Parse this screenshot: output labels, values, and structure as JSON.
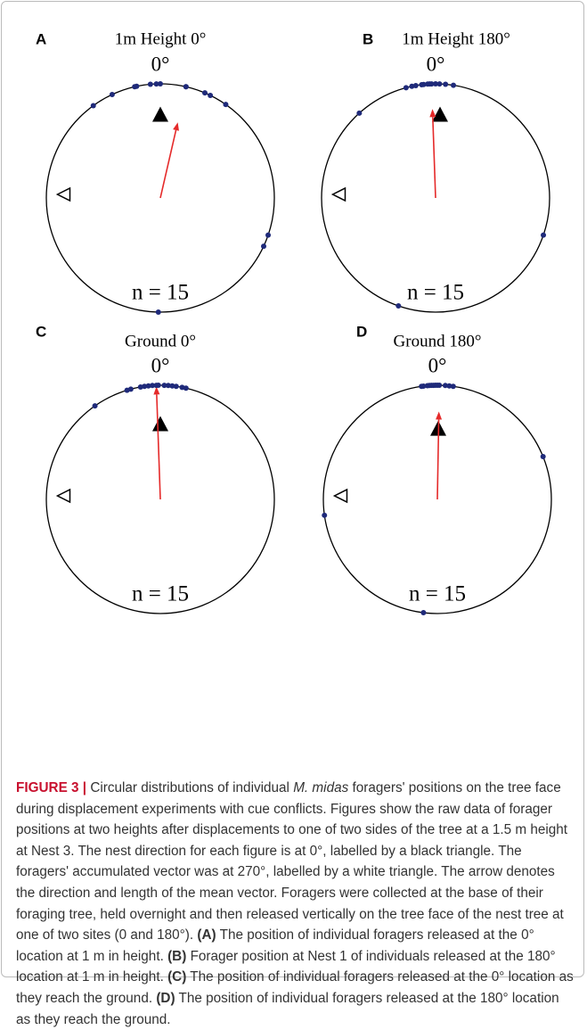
{
  "chart_data": [
    {
      "type": "circular",
      "panel": "A",
      "title": "1m Height 0°",
      "zero_label": "0°",
      "n_label": "n = 15",
      "points": [
        324,
        335,
        347,
        348,
        355,
        358,
        0,
        13,
        13,
        23,
        26,
        35,
        109,
        115,
        181
      ],
      "point_color": "#1f2a7a",
      "mean_vector": {
        "angle": 13,
        "length": 0.68
      },
      "arrow_color": "#e52a2a"
    },
    {
      "type": "circular",
      "panel": "B",
      "title": "1m Height 180°",
      "zero_label": "0°",
      "n_label": "n = 15",
      "points": [
        318,
        345,
        348,
        350,
        353,
        354,
        356,
        357,
        358,
        0,
        2,
        5,
        9,
        109,
        199
      ],
      "point_color": "#1f2a7a",
      "mean_vector": {
        "angle": 358,
        "length": 0.78
      },
      "arrow_color": "#e52a2a"
    },
    {
      "type": "circular",
      "panel": "C",
      "title": "Ground 0°",
      "zero_label": "0°",
      "n_label": "n = 15",
      "points": [
        325,
        343,
        345,
        350,
        352,
        354,
        356,
        358,
        359,
        2,
        4,
        6,
        8,
        11,
        13
      ],
      "point_color": "#1f2a7a",
      "mean_vector": {
        "angle": 358,
        "length": 0.99
      },
      "arrow_color": "#e52a2a"
    },
    {
      "type": "circular",
      "panel": "D",
      "title": "Ground 180°",
      "zero_label": "0°",
      "n_label": "n = 15",
      "points": [
        262,
        352,
        353,
        355,
        356,
        357,
        358,
        359,
        0,
        1,
        4,
        6,
        8,
        68,
        187
      ],
      "point_color": "#1f2a7a",
      "mean_vector": {
        "angle": 1,
        "length": 0.77
      },
      "arrow_color": "#e52a2a"
    }
  ],
  "caption": [
    "FIGURE 3 |",
    " Circular distributions of individual ",
    "M. midas",
    " foragers' positions on the tree face during displacement experiments with cue conflicts. Figures show the raw data of forager positions at two heights after displacements to one of two sides of the tree at a 1.5 m height at Nest 3. The nest direction for each figure is at 0°, labelled by a black triangle. The foragers' accumulated vector was at 270°, labelled by a white triangle. The arrow denotes the direction and length of the mean vector. Foragers were collected at the base of their foraging tree, held overnight and then released vertically on the tree face of the nest tree at one of two sites (0 and 180°). ",
    "(A)",
    " The position of individual foragers released at the 0° location at 1 m in height. ",
    "(B)",
    " Forager position at Nest 1 of individuals released at the 180° location at 1 m in height. ",
    "(C)",
    " The position of individual foragers released at the 0° location as they reach the ground. ",
    "(D)",
    " The position of individual foragers released at the 180° location as they reach the ground."
  ]
}
